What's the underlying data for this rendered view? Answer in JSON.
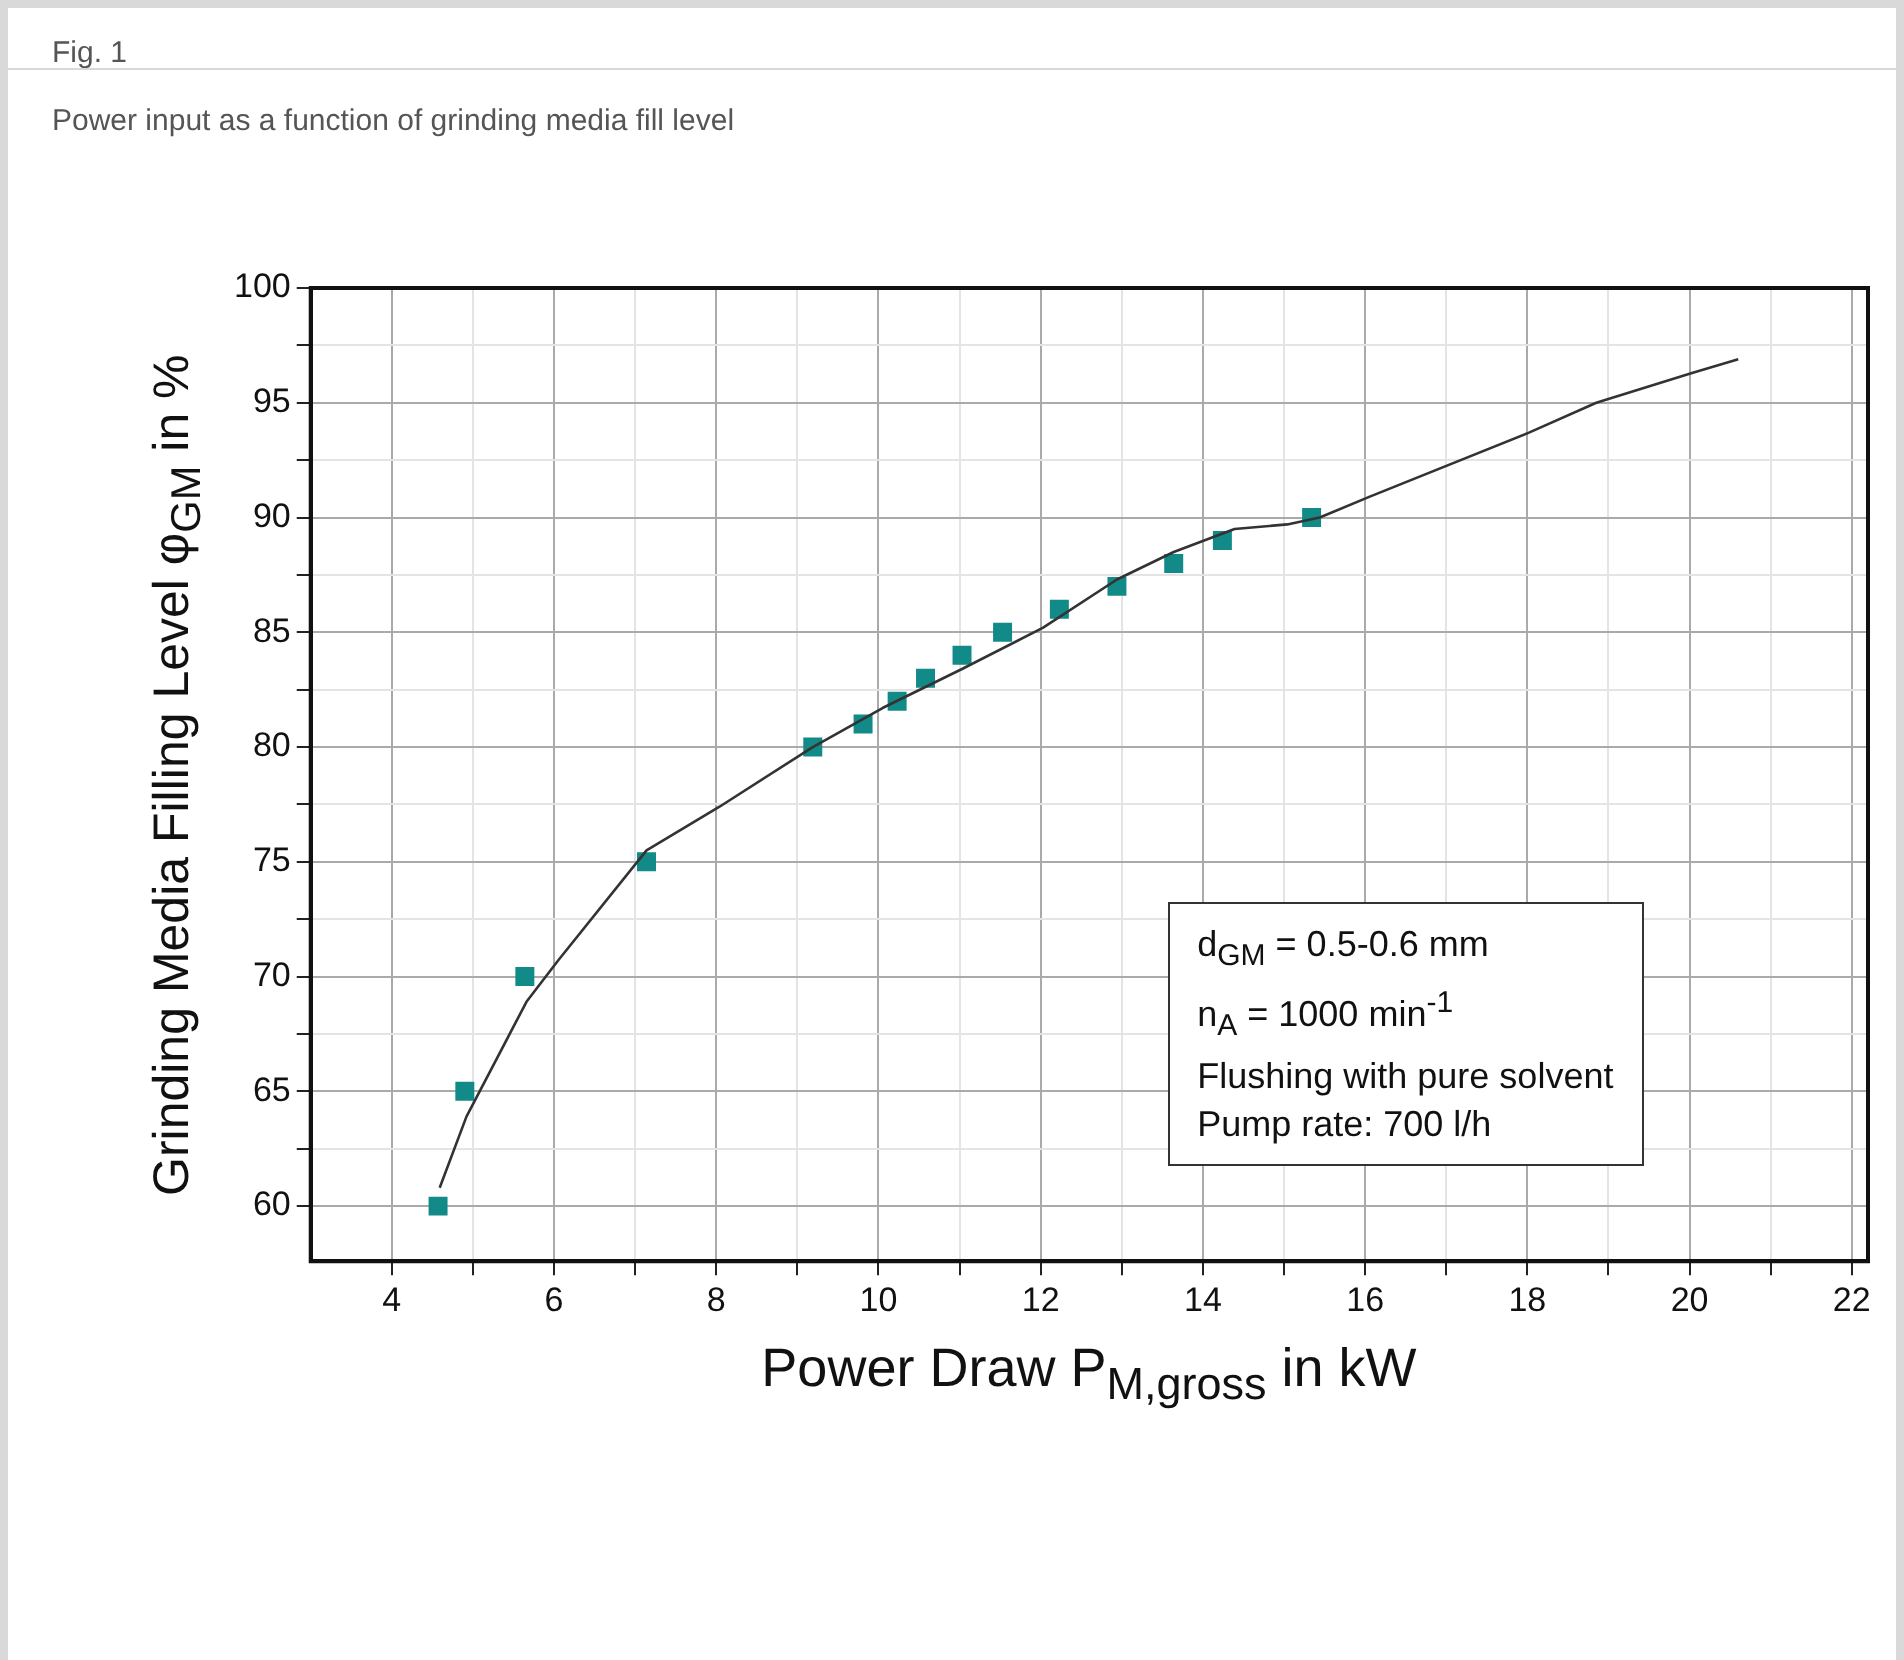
{
  "chart_data": {
    "type": "scatter",
    "title": "Fig. 1",
    "subtitle": "Power input as a function of grinding media fill level",
    "xlabel": "Power Draw P$_{M,gross}$ in kW",
    "ylabel": "Grinding Media Filling Level φ$_{GM}$ in %",
    "xlim": [
      3,
      22.2
    ],
    "ylim": [
      57.6,
      100
    ],
    "xticks": [
      4,
      {
        "value": 5,
        "label": null
      },
      6,
      {
        "value": 7,
        "label": null
      },
      8,
      {
        "value": 9,
        "label": null
      },
      10,
      {
        "value": 11,
        "label": null
      },
      12,
      {
        "value": 13,
        "label": null
      },
      14,
      {
        "value": 15,
        "label": null
      },
      16,
      {
        "value": 17,
        "label": null
      },
      18,
      {
        "value": 19,
        "label": null
      },
      20,
      {
        "value": 21,
        "label": null
      },
      22
    ],
    "yticks": [
      60,
      {
        "value": 62.5,
        "label": null
      },
      65,
      {
        "value": 67.5,
        "label": null
      },
      70,
      {
        "value": 72.5,
        "label": null
      },
      75,
      {
        "value": 77.5,
        "label": null
      },
      80,
      {
        "value": 82.5,
        "label": null
      },
      85,
      {
        "value": 87.5,
        "label": null
      },
      90,
      {
        "value": 92.5,
        "label": null
      },
      95,
      {
        "value": 97.5,
        "label": null
      },
      100
    ],
    "grid": true,
    "marker": "square",
    "legend": false,
    "series": [
      {
        "type": "scatter",
        "color": "#128a88",
        "x": [
          4.57,
          4.9,
          5.64,
          7.14,
          9.19,
          9.81,
          10.23,
          10.58,
          11.03,
          11.53,
          12.23,
          12.94,
          13.64,
          14.24,
          15.34
        ],
        "values": [
          60,
          65,
          70,
          75,
          80,
          81,
          82,
          83,
          84,
          85,
          86,
          87,
          88,
          89,
          90
        ]
      },
      {
        "type": "line",
        "color": "#333333",
        "marker": "none",
        "x": [
          4.59,
          4.92,
          5.66,
          6.05,
          7.14,
          8.04,
          9.19,
          10.05,
          11.03,
          12.03,
          12.94,
          13.64,
          14.39,
          15.04,
          15.44,
          16.05,
          18.02,
          18.85,
          20.03,
          20.6
        ],
        "values": [
          60.8,
          63.9,
          68.9,
          70.7,
          75.5,
          77.4,
          80,
          81.7,
          83.4,
          85.2,
          87.3,
          88.5,
          89.5,
          89.7,
          90,
          90.9,
          93.7,
          95,
          96.3,
          96.9
        ]
      }
    ],
    "annotations": [
      "d$_{GM}$ = 0.5-0.6 mm",
      "n$_{A}$ = 1000 min$^{-1}$",
      "Flushing with pure solvent",
      "Pump rate: 700 l/h"
    ]
  }
}
